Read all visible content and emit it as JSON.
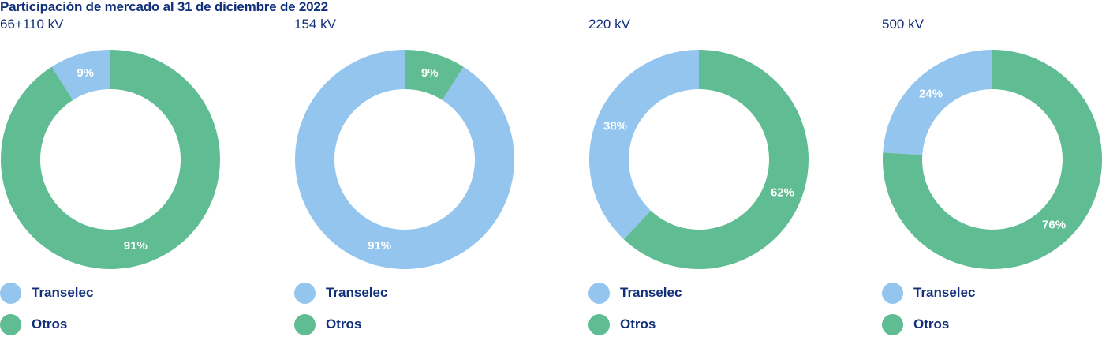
{
  "title": "Participación de mercado al 31 de diciembre de 2022",
  "colors": {
    "transelec": "#93c5ee",
    "otros": "#5fbc93",
    "text": "#12307a"
  },
  "chart_data": [
    {
      "type": "pie",
      "subtitle": "66+110 kV",
      "slices": [
        {
          "name": "Transelec",
          "value": 9,
          "label": "9%"
        },
        {
          "name": "Otros",
          "value": 91,
          "label": "91%"
        }
      ]
    },
    {
      "type": "pie",
      "subtitle": "154 kV",
      "slices": [
        {
          "name": "Transelec",
          "value": 91,
          "label": "91%"
        },
        {
          "name": "Otros",
          "value": 9,
          "label": "9%"
        }
      ]
    },
    {
      "type": "pie",
      "subtitle": "220 kV",
      "slices": [
        {
          "name": "Transelec",
          "value": 38,
          "label": "38%"
        },
        {
          "name": "Otros",
          "value": 62,
          "label": "62%"
        }
      ]
    },
    {
      "type": "pie",
      "subtitle": "500 kV",
      "slices": [
        {
          "name": "Transelec",
          "value": 24,
          "label": "24%"
        },
        {
          "name": "Otros",
          "value": 76,
          "label": "76%"
        }
      ]
    }
  ],
  "legend": [
    {
      "label": "Transelec",
      "color": "#93c5ee"
    },
    {
      "label": "Otros",
      "color": "#5fbc93"
    }
  ]
}
